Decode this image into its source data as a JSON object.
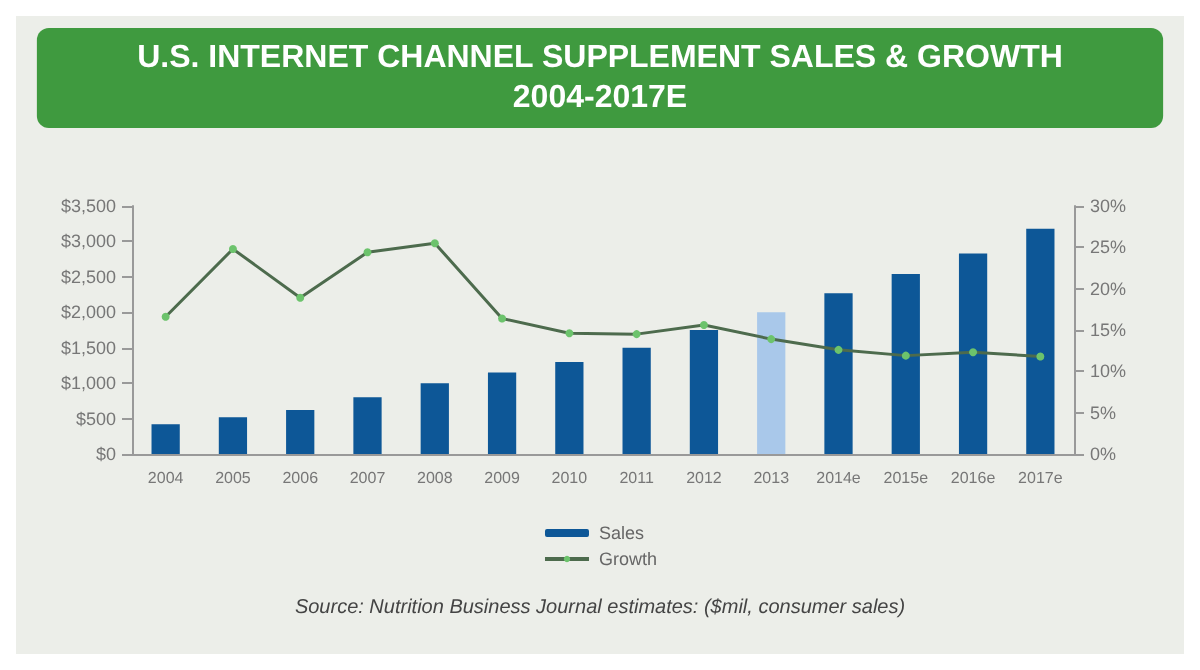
{
  "chart_data": {
    "type": "bar",
    "title": "U.S. INTERNET CHANNEL SUPPLEMENT SALES & GROWTH\n2004-2017E",
    "categories": [
      "2004",
      "2005",
      "2006",
      "2007",
      "2008",
      "2009",
      "2010",
      "2011",
      "2012",
      "2013",
      "2014e",
      "2015e",
      "2016e",
      "2017e"
    ],
    "series": [
      {
        "name": "Sales",
        "color": "#0d5797",
        "colors": [
          "#0d5797",
          "#0d5797",
          "#0d5797",
          "#0d5797",
          "#0d5797",
          "#0d5797",
          "#0d5797",
          "#0d5797",
          "#0d5797",
          "#a9c8ea",
          "#0d5797",
          "#0d5797",
          "#0d5797",
          "#0d5797"
        ],
        "values": [
          420,
          520,
          620,
          800,
          1000,
          1150,
          1300,
          1500,
          1750,
          2000,
          2270,
          2540,
          2830,
          3180
        ]
      },
      {
        "name": "Growth",
        "type": "line",
        "axis": "y2",
        "color": "#4d6b4d",
        "marker": "circle",
        "values": [
          16.6,
          24.8,
          18.9,
          24.4,
          25.5,
          16.4,
          14.6,
          14.5,
          15.6,
          13.9,
          12.6,
          11.9,
          12.3,
          11.8
        ]
      }
    ],
    "ylim": [
      0,
      3500
    ],
    "yticks": [
      {
        "value": 0,
        "label": "$0"
      },
      {
        "value": 500,
        "label": "$500"
      },
      {
        "value": 1000,
        "label": "$1,000"
      },
      {
        "value": 1500,
        "label": "$1,500"
      },
      {
        "value": 2000,
        "label": "$2,000"
      },
      {
        "value": 2500,
        "label": "$2,500"
      },
      {
        "value": 3000,
        "label": "$3,000"
      },
      {
        "value": 3500,
        "label": "$3,500"
      }
    ],
    "y2lim": [
      0,
      30
    ],
    "y2ticks": [
      {
        "value": 0,
        "label": "0%"
      },
      {
        "value": 5,
        "label": "5%"
      },
      {
        "value": 10,
        "label": "10%"
      },
      {
        "value": 15,
        "label": "15%"
      },
      {
        "value": 20,
        "label": "20%"
      },
      {
        "value": 25,
        "label": "25%"
      },
      {
        "value": 30,
        "label": "30%"
      }
    ],
    "legend": "bottom",
    "grid": false,
    "annotations": [
      "Source: Nutrition Business Journal estimates: ($mil, consumer sales)"
    ]
  }
}
